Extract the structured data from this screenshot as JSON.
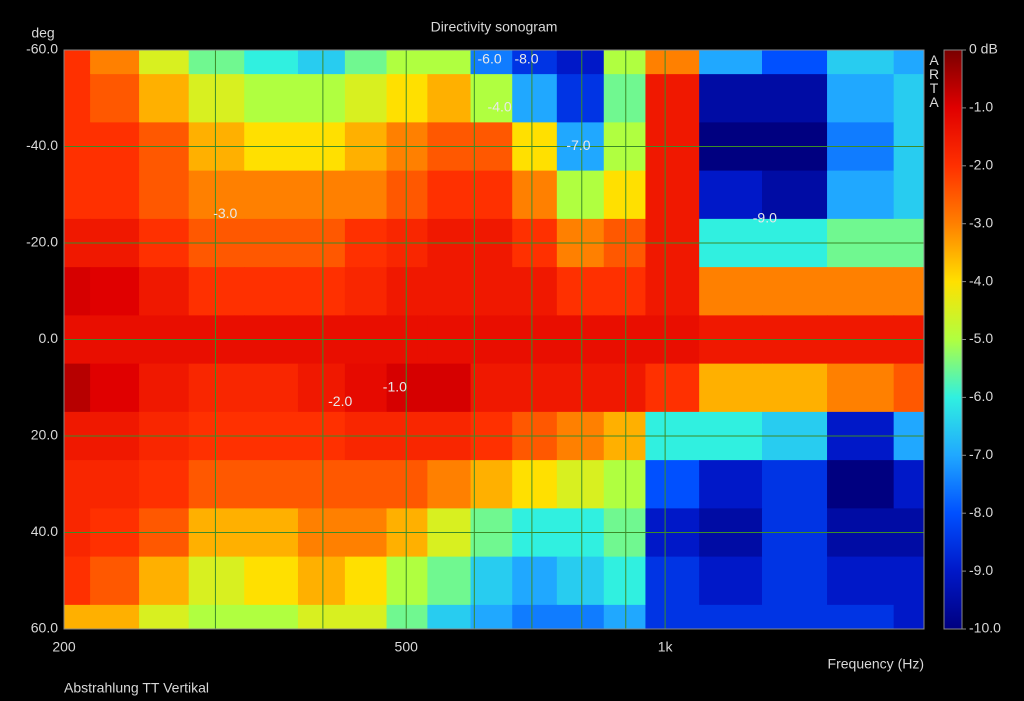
{
  "chart_data": {
    "type": "heatmap",
    "title": "Directivity sonogram",
    "x_label": "Frequency (Hz)",
    "y_label": "deg",
    "footnote": "Abstrahlung TT Vertikal",
    "watermark": "ARTA",
    "x_log": true,
    "y_reversed": true,
    "grid": true,
    "x": [
      200,
      230,
      260,
      300,
      350,
      400,
      450,
      500,
      560,
      630,
      700,
      800,
      900,
      1000,
      1200,
      1400,
      1700,
      2000
    ],
    "y": [
      -60,
      -50,
      -40,
      -30,
      -20,
      -10,
      0,
      10,
      20,
      30,
      40,
      50,
      60
    ],
    "values": [
      [
        -2,
        -3,
        -4.5,
        -5.5,
        -6,
        -6.5,
        -5.5,
        -5,
        -5,
        -7.5,
        -8.5,
        -9,
        -5,
        -3,
        -7,
        -8,
        -6.5,
        -7
      ],
      [
        -2,
        -2.5,
        -3.5,
        -4.5,
        -5,
        -5,
        -4.5,
        -4,
        -3.5,
        -5,
        -7,
        -8.5,
        -5.5,
        -1.5,
        -9.5,
        -9.5,
        -7,
        -6.5
      ],
      [
        -2,
        -2,
        -2.5,
        -3.5,
        -4,
        -4,
        -3.5,
        -3,
        -2.5,
        -2.5,
        -4,
        -7,
        -5,
        -1.5,
        -10,
        -10,
        -7.5,
        -6.5
      ],
      [
        -2,
        -2,
        -2.5,
        -3,
        -3,
        -3,
        -3,
        -2.5,
        -2,
        -2,
        -3,
        -5,
        -4,
        -1.5,
        -9,
        -9.5,
        -7,
        -6.5
      ],
      [
        -1.5,
        -1.5,
        -2,
        -2.5,
        -2.5,
        -2.5,
        -2,
        -1.8,
        -1.5,
        -1.5,
        -2,
        -3,
        -2.5,
        -1.5,
        -6,
        -6,
        -5.5,
        -5.5
      ],
      [
        -0.9,
        -1,
        -1.5,
        -2,
        -2,
        -2,
        -1.8,
        -1.5,
        -1.5,
        -1.5,
        -1.5,
        -2,
        -2,
        -1.5,
        -3,
        -3,
        -3,
        -3
      ],
      [
        -1.3,
        -1.3,
        -1.3,
        -1.3,
        -1.3,
        -1.3,
        -1.3,
        -1.3,
        -1.3,
        -1.3,
        -1.3,
        -1.3,
        -1.3,
        -1.3,
        -1.5,
        -1.5,
        -1.5,
        -1.5
      ],
      [
        -0.6,
        -1,
        -1.5,
        -1.8,
        -1.8,
        -1.5,
        -1.2,
        -0.9,
        -0.9,
        -1.5,
        -1.5,
        -1.5,
        -1.5,
        -2,
        -3.5,
        -3.5,
        -3,
        -2.5
      ],
      [
        -1.5,
        -1.5,
        -1.8,
        -2,
        -2,
        -2,
        -1.8,
        -1.8,
        -1.8,
        -2,
        -2.5,
        -3,
        -3.5,
        -6,
        -6,
        -6.5,
        -9,
        -7
      ],
      [
        -1.8,
        -1.8,
        -2,
        -2.5,
        -2.5,
        -2.5,
        -2.5,
        -2.5,
        -3,
        -3.5,
        -4,
        -4.5,
        -5,
        -8,
        -9,
        -8.5,
        -10,
        -9
      ],
      [
        -1.8,
        -2,
        -2.5,
        -3.5,
        -3.5,
        -3,
        -3,
        -3.5,
        -4.5,
        -5.5,
        -6,
        -6,
        -5.5,
        -9,
        -9.5,
        -8.5,
        -9.5,
        -9.5
      ],
      [
        -2,
        -2.5,
        -3.5,
        -4.5,
        -4,
        -3.5,
        -4,
        -5,
        -5.5,
        -6.5,
        -7,
        -6.5,
        -6,
        -8.5,
        -9,
        -8.5,
        -9,
        -9
      ],
      [
        -3.5,
        -3.5,
        -4.5,
        -5,
        -5,
        -4.5,
        -4.5,
        -5.5,
        -6.5,
        -7,
        -7.5,
        -7.5,
        -7,
        -8.5,
        -8.5,
        -8.5,
        -8.5,
        -9
      ]
    ],
    "xlim": [
      200,
      2000
    ],
    "ylim": [
      -60,
      60
    ],
    "xticks": [
      200,
      500,
      {
        "value": 1000,
        "label": "1k"
      }
    ],
    "x_minor_grid": [
      300,
      400,
      600,
      700,
      800,
      900
    ],
    "yticks": [
      {
        "value": -60,
        "label": "-60.0"
      },
      {
        "value": -40,
        "label": "-40.0"
      },
      {
        "value": -20,
        "label": "-20.0"
      },
      {
        "value": 0,
        "label": "0.0"
      },
      {
        "value": 20,
        "label": "20.0"
      },
      {
        "value": 40,
        "label": "40.0"
      },
      {
        "value": 60,
        "label": "60.0"
      }
    ],
    "zlim": [
      -10,
      0
    ],
    "zticks": [
      {
        "value": 0,
        "label": "0 dB"
      },
      {
        "value": -1,
        "label": "-1.0"
      },
      {
        "value": -2,
        "label": "-2.0"
      },
      {
        "value": -3,
        "label": "-3.0"
      },
      {
        "value": -4,
        "label": "-4.0"
      },
      {
        "value": -5,
        "label": "-5.0"
      },
      {
        "value": -6,
        "label": "-6.0"
      },
      {
        "value": -7,
        "label": "-7.0"
      },
      {
        "value": -8,
        "label": "-8.0"
      },
      {
        "value": -9,
        "label": "-9.0"
      },
      {
        "value": -10,
        "label": "-10.0"
      }
    ],
    "zcolors": [
      "#7a0000",
      "#e00000",
      "#ff3000",
      "#ff8000",
      "#ffe000",
      "#b0ff40",
      "#30f0e0",
      "#20a8ff",
      "#0050ff",
      "#0018c8",
      "#000080"
    ],
    "grid_color": "#3c8c28",
    "annotations": [
      {
        "text": "-6.0",
        "x": 625,
        "y": -58
      },
      {
        "text": "-8.0",
        "x": 690,
        "y": -58
      },
      {
        "text": "-4.0",
        "x": 642,
        "y": -48
      },
      {
        "text": "-7.0",
        "x": 793,
        "y": -40
      },
      {
        "text": "-3.0",
        "x": 308,
        "y": -26
      },
      {
        "text": "-9.0",
        "x": 1306,
        "y": -25
      },
      {
        "text": "-2.0",
        "x": 419,
        "y": 13
      },
      {
        "text": "-1.0",
        "x": 485,
        "y": 10
      }
    ]
  }
}
